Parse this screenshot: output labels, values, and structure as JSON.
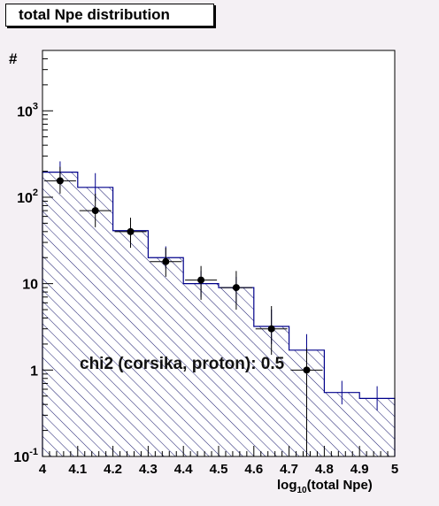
{
  "chart_data": {
    "type": "bar",
    "title": "total Npe distribution",
    "ylabel": "#",
    "xlabel_main": "log",
    "xlabel_sub": "10",
    "xlabel_rest": "(total Npe)",
    "xlim": [
      4,
      5
    ],
    "ylim": [
      0.1,
      5000
    ],
    "yscale": "log",
    "x_ticks": [
      "4",
      "4.1",
      "4.2",
      "4.3",
      "4.4",
      "4.5",
      "4.6",
      "4.7",
      "4.8",
      "4.9",
      "5"
    ],
    "y_tick_labels": [
      {
        "base": "10",
        "exp": "-1",
        "value": 0.1
      },
      {
        "base": "1",
        "exp": "",
        "value": 1
      },
      {
        "base": "10",
        "exp": "",
        "value": 10
      },
      {
        "base": "10",
        "exp": "2",
        "value": 100
      },
      {
        "base": "10",
        "exp": "3",
        "value": 1000
      }
    ],
    "histogram": {
      "bin_edges": [
        4.0,
        4.1,
        4.2,
        4.3,
        4.4,
        4.5,
        4.6,
        4.7,
        4.8,
        4.9,
        5.0
      ],
      "values": [
        195,
        130,
        41,
        20,
        10,
        9,
        3.2,
        1.7,
        0.55,
        0.47
      ],
      "err_lo": [
        150,
        90,
        30,
        15,
        7,
        6,
        2,
        0.9,
        0.4,
        0.34
      ],
      "err_hi": [
        260,
        190,
        56,
        27,
        14,
        12,
        5,
        2.6,
        0.75,
        0.65
      ]
    },
    "data_points": {
      "x": [
        4.05,
        4.15,
        4.25,
        4.35,
        4.45,
        4.55,
        4.65,
        4.75
      ],
      "y": [
        155,
        70,
        40,
        18,
        11,
        9,
        3,
        1.0
      ],
      "err_lo": [
        110,
        45,
        26,
        12,
        6.5,
        5,
        1.5,
        0.1
      ],
      "err_hi": [
        225,
        110,
        58,
        26,
        16,
        14,
        5.5,
        1.8
      ]
    },
    "annotation": "chi2 (corsika, proton): 0.5"
  },
  "colors": {
    "hatch": "#1a1a6e",
    "histogram_line": "#00008b",
    "points": "#000000",
    "frame_bg": "#ffffff",
    "page_bg": "#f4f0f4"
  }
}
